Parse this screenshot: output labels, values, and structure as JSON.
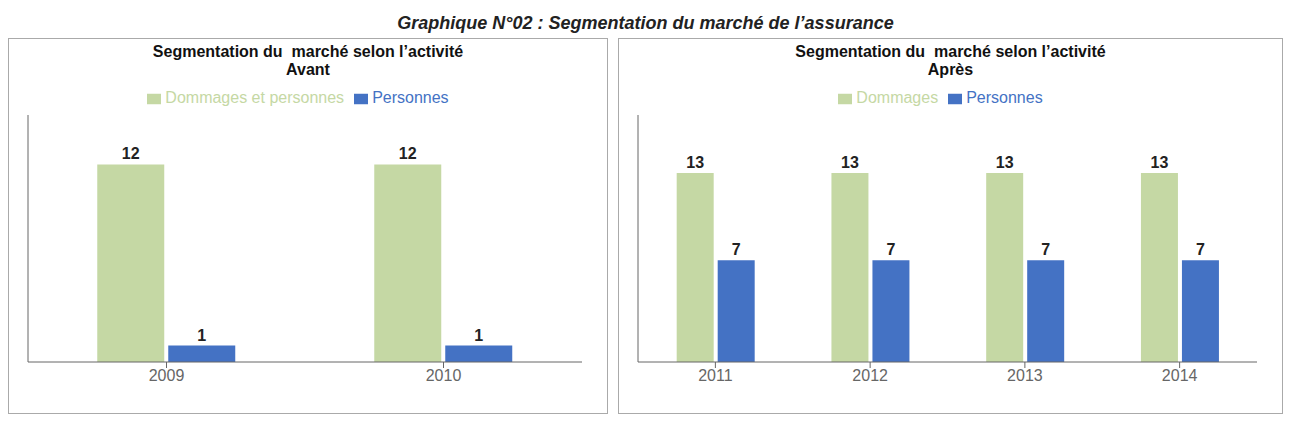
{
  "title": "Graphique N°02 : Segmentation du marché de l’assurance",
  "chart_data": [
    {
      "type": "bar",
      "title": "Segmentation du  marché selon l’activité",
      "subtitle": "Avant",
      "categories": [
        "2009",
        "2010"
      ],
      "series": [
        {
          "name": "Dommages et personnes",
          "color": "#c5d8a4",
          "values": [
            12,
            12
          ]
        },
        {
          "name": "Personnes",
          "color": "#4472c4",
          "values": [
            1,
            1
          ]
        }
      ],
      "ylim": [
        0,
        15
      ],
      "grid": false,
      "legend": "top",
      "data_labels": true,
      "tick_labels": "x"
    },
    {
      "type": "bar",
      "title": "Segmentation du  marché selon l’activité",
      "subtitle": "Après",
      "categories": [
        "2011",
        "2012",
        "2013",
        "2014"
      ],
      "series": [
        {
          "name": "Dommages",
          "color": "#c5d8a4",
          "values": [
            13,
            13,
            13,
            13
          ]
        },
        {
          "name": "Personnes",
          "color": "#4472c4",
          "values": [
            7,
            7,
            7,
            7
          ]
        }
      ],
      "ylim": [
        0,
        17
      ],
      "grid": false,
      "legend": "top",
      "data_labels": true,
      "tick_labels": "x"
    }
  ]
}
